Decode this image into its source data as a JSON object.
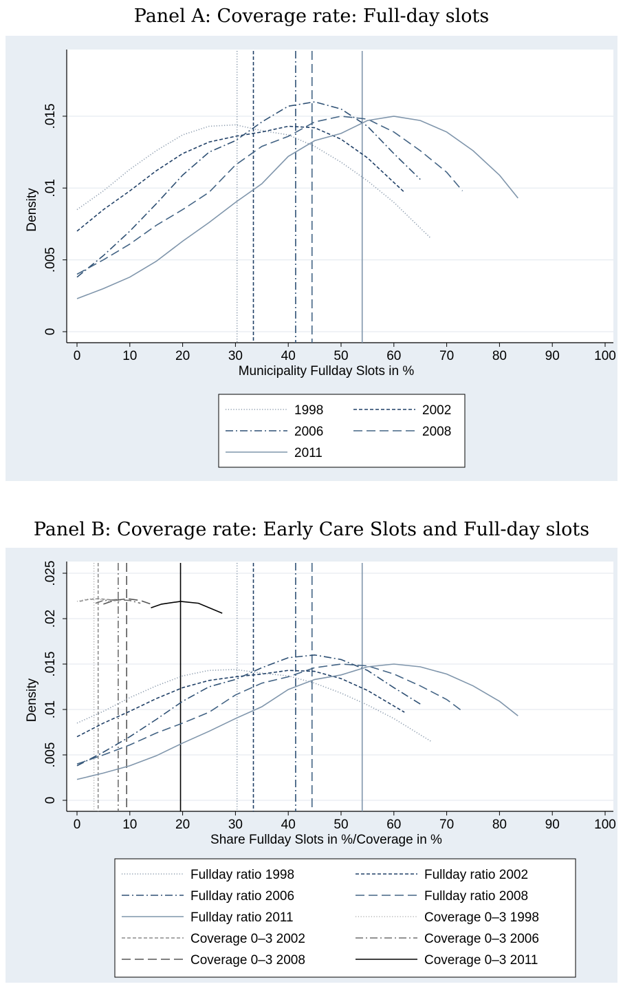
{
  "chart_data": [
    {
      "type": "line",
      "title": "Panel A: Coverage rate: Full-day slots",
      "xlabel": "Municipality Fullday Slots in %",
      "ylabel": "Density",
      "xlim": [
        0,
        100
      ],
      "ylim": [
        0,
        0.016
      ],
      "x_ticks": [
        "0",
        "10",
        "20",
        "30",
        "40",
        "50",
        "60",
        "70",
        "80",
        "90",
        "100"
      ],
      "y_ticks": [
        "0",
        ".005",
        ".01",
        ".015"
      ],
      "grid": "horizontal",
      "legend_placement": "below",
      "series": [
        {
          "name": "1998",
          "style": "dotted",
          "color": "#8a9aac",
          "mean": 30.3,
          "points": [
            [
              0,
              0.0085
            ],
            [
              5,
              0.0098
            ],
            [
              10,
              0.0113
            ],
            [
              15,
              0.0126
            ],
            [
              20,
              0.0137
            ],
            [
              25,
              0.0143
            ],
            [
              30,
              0.0144
            ],
            [
              35,
              0.014
            ],
            [
              40,
              0.0137
            ],
            [
              45,
              0.0129
            ],
            [
              50,
              0.0118
            ],
            [
              55,
              0.0105
            ],
            [
              60,
              0.009
            ],
            [
              67,
              0.0065
            ]
          ]
        },
        {
          "name": "2002",
          "style": "short-dash",
          "color": "#1f3f66",
          "mean": 33.4,
          "points": [
            [
              0,
              0.007
            ],
            [
              5,
              0.0085
            ],
            [
              10,
              0.0098
            ],
            [
              15,
              0.0112
            ],
            [
              20,
              0.0124
            ],
            [
              25,
              0.0132
            ],
            [
              30,
              0.0136
            ],
            [
              35,
              0.0139
            ],
            [
              40,
              0.0143
            ],
            [
              45,
              0.0142
            ],
            [
              50,
              0.0134
            ],
            [
              55,
              0.0121
            ],
            [
              62,
              0.0097
            ]
          ]
        },
        {
          "name": "2006",
          "style": "dash-dot",
          "color": "#2d4f73",
          "mean": 41.4,
          "points": [
            [
              0,
              0.0038
            ],
            [
              5,
              0.0053
            ],
            [
              10,
              0.007
            ],
            [
              15,
              0.0089
            ],
            [
              20,
              0.0109
            ],
            [
              25,
              0.0125
            ],
            [
              30,
              0.0133
            ],
            [
              35,
              0.0146
            ],
            [
              40,
              0.0157
            ],
            [
              45,
              0.016
            ],
            [
              50,
              0.0155
            ],
            [
              55,
              0.0143
            ],
            [
              60,
              0.0124
            ],
            [
              65,
              0.0106
            ]
          ]
        },
        {
          "name": "2008",
          "style": "long-dash",
          "color": "#426384",
          "mean": 44.5,
          "points": [
            [
              0,
              0.004
            ],
            [
              5,
              0.005
            ],
            [
              10,
              0.0061
            ],
            [
              15,
              0.0074
            ],
            [
              20,
              0.0085
            ],
            [
              25,
              0.0097
            ],
            [
              30,
              0.0116
            ],
            [
              35,
              0.0129
            ],
            [
              40,
              0.0136
            ],
            [
              45,
              0.0146
            ],
            [
              50,
              0.015
            ],
            [
              55,
              0.0148
            ],
            [
              60,
              0.0139
            ],
            [
              65,
              0.0126
            ],
            [
              70,
              0.0111
            ],
            [
              73,
              0.0098
            ]
          ]
        },
        {
          "name": "2011",
          "style": "solid",
          "color": "#7f95ab",
          "mean": 54.0,
          "points": [
            [
              0,
              0.0023
            ],
            [
              5,
              0.003
            ],
            [
              10,
              0.0038
            ],
            [
              15,
              0.0049
            ],
            [
              20,
              0.0063
            ],
            [
              25,
              0.0076
            ],
            [
              30,
              0.009
            ],
            [
              35,
              0.0103
            ],
            [
              40,
              0.0122
            ],
            [
              45,
              0.0133
            ],
            [
              50,
              0.0138
            ],
            [
              55,
              0.0147
            ],
            [
              60,
              0.015
            ],
            [
              65,
              0.0147
            ],
            [
              70,
              0.0139
            ],
            [
              75,
              0.0126
            ],
            [
              80,
              0.0109
            ],
            [
              83.5,
              0.0093
            ]
          ]
        }
      ]
    },
    {
      "type": "line",
      "title": "Panel B: Coverage rate: Early Care Slots and Full-day slots",
      "xlabel": "Share Fullday Slots in %/Coverage in %",
      "ylabel": "Density",
      "xlim": [
        0,
        100
      ],
      "ylim": [
        0,
        0.025
      ],
      "x_ticks": [
        "0",
        "10",
        "20",
        "30",
        "40",
        "50",
        "60",
        "70",
        "80",
        "90",
        "100"
      ],
      "y_ticks": [
        "0",
        ".005",
        ".01",
        ".015",
        ".02",
        ".025"
      ],
      "grid": "horizontal",
      "legend_placement": "below",
      "series": [
        {
          "name": "Fullday ratio 1998",
          "style": "dotted",
          "color": "#8a9aac",
          "mean": 30.3,
          "points": [
            [
              0,
              0.0085
            ],
            [
              5,
              0.0098
            ],
            [
              10,
              0.0113
            ],
            [
              15,
              0.0126
            ],
            [
              20,
              0.0137
            ],
            [
              25,
              0.0143
            ],
            [
              30,
              0.0144
            ],
            [
              35,
              0.014
            ],
            [
              40,
              0.0137
            ],
            [
              45,
              0.0129
            ],
            [
              50,
              0.0118
            ],
            [
              55,
              0.0105
            ],
            [
              60,
              0.009
            ],
            [
              67,
              0.0065
            ]
          ]
        },
        {
          "name": "Fullday ratio 2002",
          "style": "short-dash",
          "color": "#1f3f66",
          "mean": 33.4,
          "points": [
            [
              0,
              0.007
            ],
            [
              5,
              0.0085
            ],
            [
              10,
              0.0098
            ],
            [
              15,
              0.0112
            ],
            [
              20,
              0.0124
            ],
            [
              25,
              0.0132
            ],
            [
              30,
              0.0136
            ],
            [
              35,
              0.0139
            ],
            [
              40,
              0.0143
            ],
            [
              45,
              0.0142
            ],
            [
              50,
              0.0134
            ],
            [
              55,
              0.0121
            ],
            [
              62,
              0.0097
            ]
          ]
        },
        {
          "name": "Fullday ratio 2006",
          "style": "dash-dot",
          "color": "#2d4f73",
          "mean": 41.4,
          "points": [
            [
              0,
              0.0038
            ],
            [
              5,
              0.0053
            ],
            [
              10,
              0.007
            ],
            [
              15,
              0.0089
            ],
            [
              20,
              0.0109
            ],
            [
              25,
              0.0125
            ],
            [
              30,
              0.0133
            ],
            [
              35,
              0.0146
            ],
            [
              40,
              0.0157
            ],
            [
              45,
              0.016
            ],
            [
              50,
              0.0155
            ],
            [
              55,
              0.0143
            ],
            [
              60,
              0.0124
            ],
            [
              65,
              0.0106
            ]
          ]
        },
        {
          "name": "Fullday ratio 2008",
          "style": "long-dash",
          "color": "#426384",
          "mean": 44.5,
          "points": [
            [
              0,
              0.004
            ],
            [
              5,
              0.005
            ],
            [
              10,
              0.0061
            ],
            [
              15,
              0.0074
            ],
            [
              20,
              0.0085
            ],
            [
              25,
              0.0097
            ],
            [
              30,
              0.0116
            ],
            [
              35,
              0.0129
            ],
            [
              40,
              0.0136
            ],
            [
              45,
              0.0146
            ],
            [
              50,
              0.015
            ],
            [
              55,
              0.0148
            ],
            [
              60,
              0.0139
            ],
            [
              65,
              0.0126
            ],
            [
              70,
              0.0111
            ],
            [
              73,
              0.0098
            ]
          ]
        },
        {
          "name": "Fullday ratio 2011",
          "style": "solid",
          "color": "#7f95ab",
          "mean": 54.0,
          "points": [
            [
              0,
              0.0023
            ],
            [
              5,
              0.003
            ],
            [
              10,
              0.0038
            ],
            [
              15,
              0.0049
            ],
            [
              20,
              0.0063
            ],
            [
              25,
              0.0076
            ],
            [
              30,
              0.009
            ],
            [
              35,
              0.0103
            ],
            [
              40,
              0.0122
            ],
            [
              45,
              0.0133
            ],
            [
              50,
              0.0138
            ],
            [
              55,
              0.0147
            ],
            [
              60,
              0.015
            ],
            [
              65,
              0.0147
            ],
            [
              70,
              0.0139
            ],
            [
              75,
              0.0126
            ],
            [
              80,
              0.0109
            ],
            [
              83.5,
              0.0093
            ]
          ]
        },
        {
          "name": "Coverage 0–3 1998",
          "style": "dotted",
          "color": "#b3b3b3",
          "mean": 3.2,
          "points": [
            [
              0,
              0.0219
            ],
            [
              1.5,
              0.0221
            ],
            [
              3,
              0.0222
            ],
            [
              4.5,
              0.0221
            ],
            [
              6,
              0.0219
            ]
          ]
        },
        {
          "name": "Coverage 0–3 2002",
          "style": "short-dash",
          "color": "#8c8c8c",
          "mean": 4.0,
          "points": [
            [
              0.5,
              0.0219
            ],
            [
              2,
              0.0221
            ],
            [
              4,
              0.0222
            ],
            [
              6,
              0.0221
            ],
            [
              8,
              0.0219
            ]
          ]
        },
        {
          "name": "Coverage 0–3 2006",
          "style": "dash-dot",
          "color": "#6e6e6e",
          "mean": 7.8,
          "points": [
            [
              3.5,
              0.0217
            ],
            [
              5,
              0.022
            ],
            [
              7.5,
              0.0221
            ],
            [
              10,
              0.022
            ],
            [
              12,
              0.0217
            ]
          ]
        },
        {
          "name": "Coverage 0–3 2008",
          "style": "long-dash",
          "color": "#555555",
          "mean": 9.4,
          "points": [
            [
              5,
              0.0216
            ],
            [
              7,
              0.022
            ],
            [
              9.5,
              0.0222
            ],
            [
              12,
              0.022
            ],
            [
              14,
              0.0216
            ]
          ]
        },
        {
          "name": "Coverage 0–3 2011",
          "style": "solid",
          "color": "#000000",
          "mean": 19.6,
          "points": [
            [
              14,
              0.0212
            ],
            [
              16,
              0.0216
            ],
            [
              19.6,
              0.0219
            ],
            [
              23,
              0.0217
            ],
            [
              27.5,
              0.0206
            ]
          ]
        }
      ]
    }
  ]
}
